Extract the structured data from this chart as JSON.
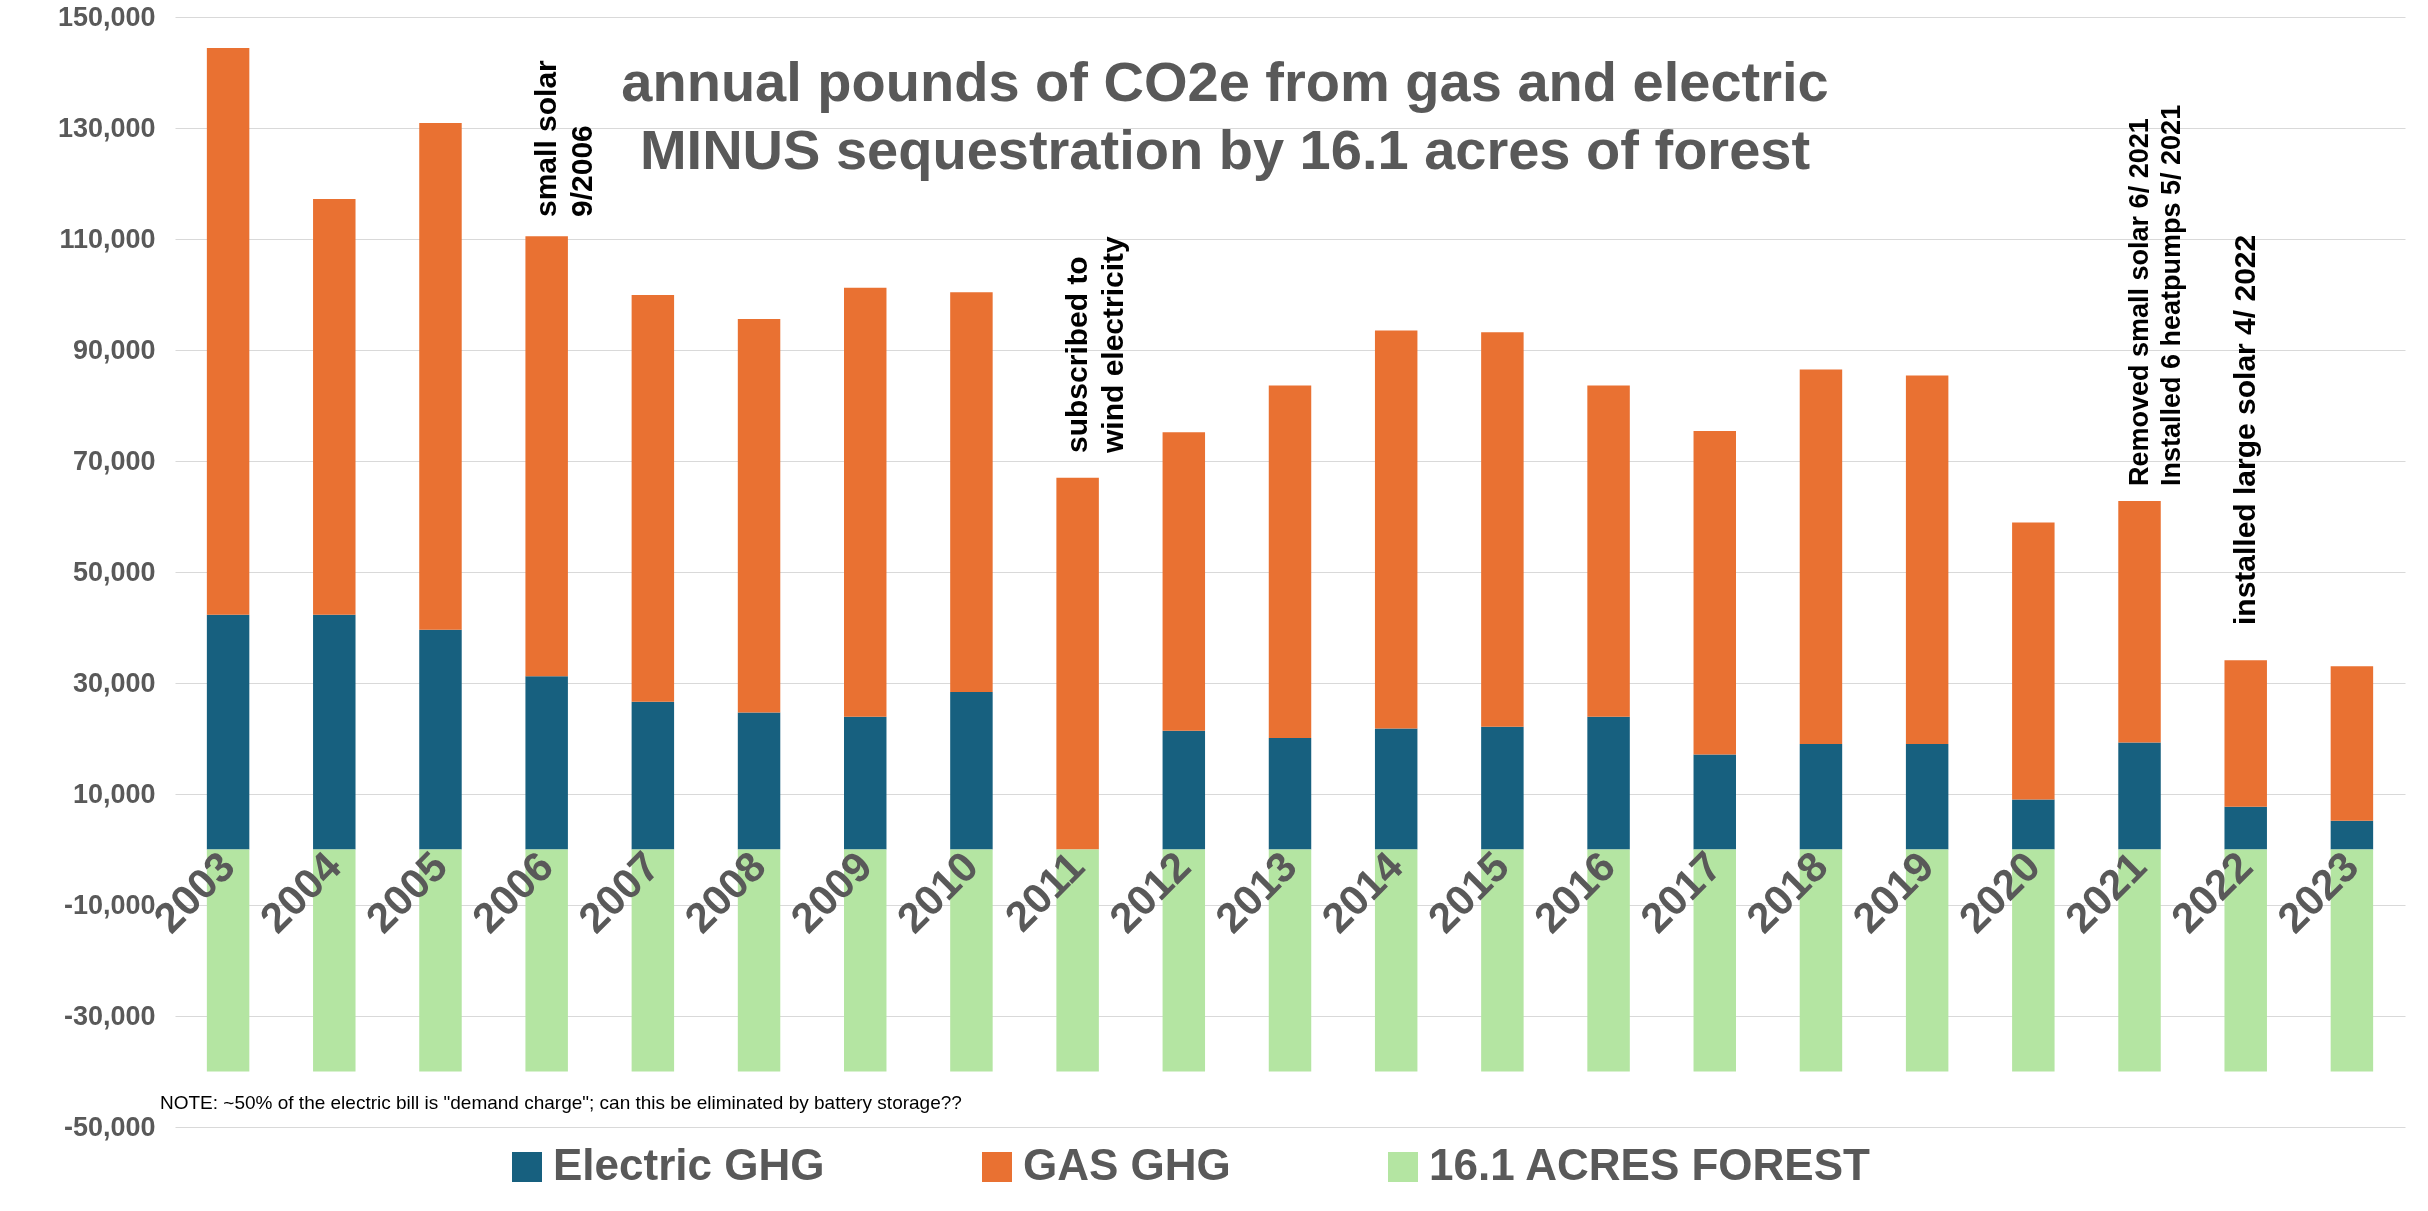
{
  "chart_data": {
    "type": "bar",
    "title": "annual pounds of CO2e from gas and electric\nMINUS sequestration by 16.1 acres of forest",
    "categories": [
      "2003",
      "2004",
      "2005",
      "2006",
      "2007",
      "2008",
      "2009",
      "2010",
      "2011",
      "2012",
      "2013",
      "2014",
      "2015",
      "2016",
      "2017",
      "2018",
      "2019",
      "2020",
      "2021",
      "2022",
      "2023"
    ],
    "stacked": true,
    "series": [
      {
        "name": "Electric GHG",
        "color": "#17607f",
        "values": [
          42300,
          42300,
          39600,
          31200,
          26600,
          24700,
          23900,
          28400,
          0,
          21400,
          20100,
          21800,
          22100,
          23900,
          17100,
          19000,
          19000,
          9000,
          19300,
          7700,
          5200
        ]
      },
      {
        "name": "GAS GHG",
        "color": "#e97132",
        "values": [
          102100,
          74900,
          91300,
          79300,
          73300,
          70900,
          77300,
          72000,
          67000,
          53800,
          63500,
          71700,
          71100,
          59700,
          58300,
          67500,
          66400,
          49900,
          43500,
          26400,
          27800
        ]
      },
      {
        "name": "16.1 ACRES FOREST",
        "color": "#b4e5a2",
        "values": [
          -40000,
          -40000,
          -40000,
          -40000,
          -40000,
          -40000,
          -40000,
          -40000,
          -40000,
          -40000,
          -40000,
          -40000,
          -40000,
          -40000,
          -40000,
          -40000,
          -40000,
          -40000,
          -40000,
          -40000,
          -40000
        ]
      }
    ],
    "ylim": [
      -50000,
      150000
    ],
    "yticks": [
      {
        "value": -50000,
        "label": "-50,000"
      },
      {
        "value": -30000,
        "label": "-30,000"
      },
      {
        "value": -10000,
        "label": "-10,000"
      },
      {
        "value": 10000,
        "label": "10,000"
      },
      {
        "value": 30000,
        "label": "30,000"
      },
      {
        "value": 50000,
        "label": "50,000"
      },
      {
        "value": 70000,
        "label": "70,000"
      },
      {
        "value": 90000,
        "label": "90,000"
      },
      {
        "value": 110000,
        "label": "110,000"
      },
      {
        "value": 130000,
        "label": "130,000"
      },
      {
        "value": 150000,
        "label": "150,000"
      }
    ],
    "grid": "y",
    "legend": "bottom",
    "annotations": [
      "small solar\n9/2006",
      "subscribed to\nwind electricity",
      "Removed small solar 6/ 2021\nInstalled 6 heatpumps 5/ 2021",
      "installed large solar 4/ 2022",
      "NOTE:  ~50% of the electric bill is \"demand charge\";  can this be eliminated by battery storage??"
    ]
  }
}
